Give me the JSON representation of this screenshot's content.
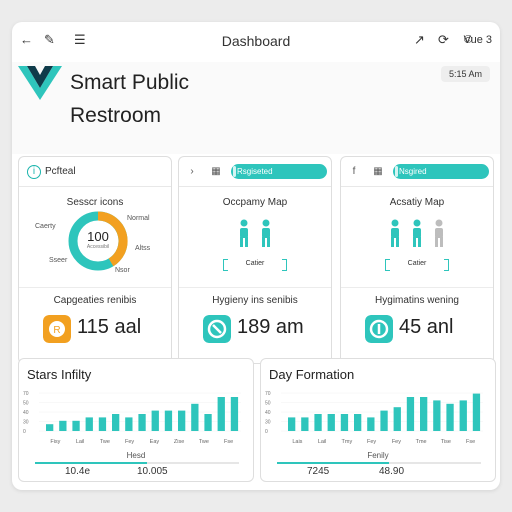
{
  "header": {
    "title": "Dashboard",
    "version": "Vue 3",
    "icons": [
      "back-arrow-icon",
      "edit-icon",
      "menu-icon",
      "share-icon",
      "refresh-icon",
      "copyright-icon"
    ]
  },
  "hero": {
    "title_line1": "Smart Public",
    "title_line2": "Restroom",
    "time": "5:15 Am"
  },
  "colors": {
    "teal": "#2ec5bc",
    "orange": "#f2a020",
    "dark_teal": "#0f6b6b",
    "light_teal": "#8ddbd6"
  },
  "cards": [
    {
      "header_label": "Pcfteal",
      "subtitle": "Sesscr icons",
      "donut": {
        "value": "100",
        "caption": "Accessibil",
        "labels": [
          "Caerty",
          "Normal",
          "Altss",
          "Sseer",
          "Nsor"
        ],
        "segments": [
          {
            "color": "#2ec5bc",
            "fraction": 0.5
          },
          {
            "color": "#f2a020",
            "fraction": 0.5
          }
        ]
      },
      "metric_label": "Capgeaties renibis",
      "metric_value": "115 aal"
    },
    {
      "header_pill": "Rsgiseted",
      "subtitle": "Occpamy Map",
      "button_label": "Catier",
      "figures": [
        "teal",
        "teal"
      ],
      "metric_label": "Hygieny ins senibis",
      "metric_value": "189 am"
    },
    {
      "header_pill": "Nsgired",
      "subtitle": "Acsatiy Map",
      "button_label": "Catier",
      "figures": [
        "teal",
        "teal",
        "light"
      ],
      "metric_label": "Hygimatins wening",
      "metric_value": "45 anl"
    }
  ],
  "panels": [
    {
      "title": "Stars Infilty",
      "y_ticks": [
        "70",
        "50",
        "40",
        "30",
        "0"
      ],
      "x_labels": [
        "Fisy",
        "Lail",
        "Twe",
        "Fey",
        "Eay",
        "Zise",
        "Twe",
        "Fse"
      ],
      "legend": "Hesd",
      "stat_left": "10.4e",
      "stat_right": "10.005",
      "progress": 0.55
    },
    {
      "title": "Day Formation",
      "y_ticks": [
        "70",
        "50",
        "40",
        "30",
        "0"
      ],
      "x_labels": [
        "Lais",
        "Lail",
        "Tmy",
        "Fey",
        "Fey",
        "Tme",
        "Tise",
        "Fse"
      ],
      "legend": "Fenily",
      "stat_left": "7245",
      "stat_right": "48.90",
      "progress": 0.55
    }
  ]
}
